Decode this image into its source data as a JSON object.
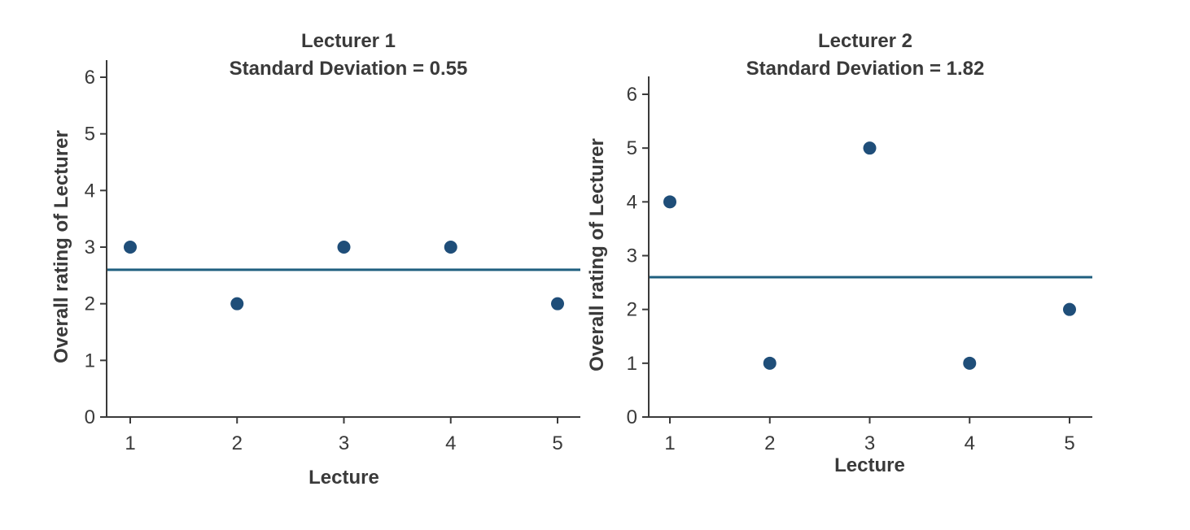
{
  "chart_data": [
    {
      "type": "scatter",
      "title": "Lecturer 1",
      "subtitle": "Standard Deviation = 0.55",
      "xlabel": "Lecture",
      "ylabel": "Overall rating of Lecturer",
      "x": [
        1,
        2,
        3,
        4,
        5
      ],
      "y": [
        3,
        2,
        3,
        3,
        2
      ],
      "mean_line": 2.6,
      "xticks": [
        "1",
        "2",
        "3",
        "4",
        "5"
      ],
      "yticks": [
        "0",
        "1",
        "2",
        "3",
        "4",
        "5",
        "6"
      ],
      "xlim": [
        0.8,
        5.2
      ],
      "ylim": [
        0,
        6.3
      ],
      "grid": false,
      "point_color": "#1f4e79",
      "line_color": "#1f5f7f"
    },
    {
      "type": "scatter",
      "title": "Lecturer 2",
      "subtitle": "Standard Deviation = 1.82",
      "xlabel": "Lecture",
      "ylabel": "Overall rating of Lecturer",
      "x": [
        1,
        2,
        3,
        4,
        5
      ],
      "y": [
        4,
        1,
        5,
        1,
        2
      ],
      "mean_line": 2.6,
      "xticks": [
        "1",
        "2",
        "3",
        "4",
        "5"
      ],
      "yticks": [
        "0",
        "1",
        "2",
        "3",
        "4",
        "5",
        "6"
      ],
      "xlim": [
        0.8,
        5.2
      ],
      "ylim": [
        0,
        6.3
      ],
      "grid": false,
      "point_color": "#1f4e79",
      "line_color": "#1f5f7f"
    }
  ]
}
